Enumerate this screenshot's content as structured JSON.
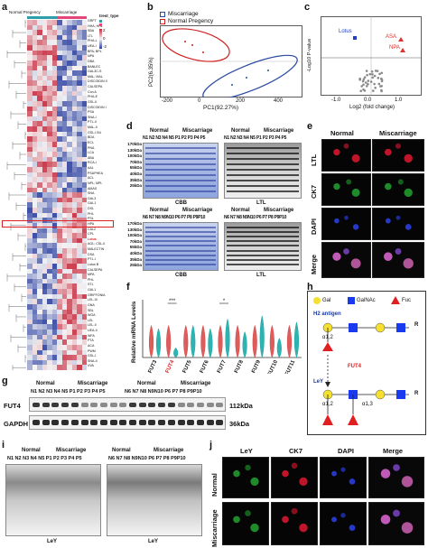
{
  "panels": {
    "a": "a",
    "b": "b",
    "c": "c",
    "d": "d",
    "e": "e",
    "f": "f",
    "g": "g",
    "h": "h",
    "i": "i",
    "j": "j"
  },
  "heatmap": {
    "group_labels": [
      "Normal Pregency",
      "Miscarriage"
    ],
    "legend_title": "trest_type",
    "legend_items": [
      "Normal Pregency",
      "Miscarriage"
    ],
    "scale_ticks": [
      "2",
      "1",
      "0",
      "-1",
      "-2"
    ],
    "row_labels": [
      "GRFT",
      "HHA; HHL",
      "SBA",
      "LTL",
      "PHA-L",
      "UEA-I",
      "BPA; BPL",
      "NPA",
      "DBA",
      "BANLEC",
      "GAL3C-S",
      "MAL; MAL",
      "DISCOIDIN II",
      "CALSEPA",
      "Con A",
      "PHA-E",
      "GSL-II",
      "DISCOIDIN I",
      "PSA",
      "SNA-I",
      "PTL-II",
      "MAL-II",
      "GSL-I B4",
      "BDA",
      "ECL",
      "PNA",
      "LCA",
      "ABA",
      "RCA-I",
      "AAL",
      "PSAPHEA",
      "ACL",
      "NPL; MPL",
      "AMAS",
      "SNA",
      "GAL3",
      "GAL1",
      "DSL",
      "PHL",
      "PSL",
      "HPA",
      "CAL2",
      "CPL",
      "Lotus",
      "AGL; CSL-II",
      "MALECTIN",
      "DSA",
      "PTL-I",
      "Lotus B",
      "CALSEPA",
      "MPA",
      "PHL",
      "STL",
      "GAL1",
      "GRIFFONIA",
      "LEL-III",
      "GNA",
      "SBL",
      "WGA",
      "LEL",
      "LEL-II",
      "UEA-II",
      "WFA",
      "PTA",
      "ACA",
      "PWM",
      "GSL-I",
      "SNA-II",
      "VVA"
    ],
    "highlight_label": "Lotus"
  },
  "pca": {
    "legend": [
      "Miscarriage",
      "Normal Pregency"
    ],
    "xlabel": "PC1(92.27%)",
    "ylabel": "PC2(6.35%)",
    "xticks": [
      "-200",
      "0",
      "200",
      "400"
    ]
  },
  "volcano": {
    "ylabel": "-Log10 P-value",
    "xlabel": "Log2 (fold change)",
    "xticks": [
      "-1.0",
      "0.0",
      "1.0"
    ],
    "point_labels": [
      "Lotus",
      "ASA",
      "NPA"
    ]
  },
  "blots_d": {
    "row1_groups": [
      "Normal",
      "Miscarriage",
      "Normal",
      "Miscarriage"
    ],
    "row1_lanes": "N1 N2 N3 N4 N5  P1 P2 P3 P4 P5",
    "row2_groups": [
      "Normal",
      "Miscarriage",
      "Normal",
      "Miscarriage"
    ],
    "row2_lanes": "N6 N7 N8 N9N10 P6 P7 P8 P9P10",
    "markers": [
      "170kDa",
      "130kDa",
      "100kDa",
      "70kDa",
      "55kDa",
      "40kDa",
      "35kDa",
      "25kDa"
    ],
    "captions": [
      "CBB",
      "LTL",
      "CBB",
      "LTL"
    ]
  },
  "micro_e": {
    "cols": [
      "Normal",
      "Miscarriage"
    ],
    "rows": [
      "LTL",
      "CK7",
      "DAPI",
      "Merge"
    ]
  },
  "chart_f": {
    "ylabel": "Relative mRNA Levels",
    "sig": [
      "***",
      "*"
    ]
  },
  "chart_data": {
    "type": "violin",
    "title": "",
    "ylabel": "Relative mRNA Levels",
    "categories": [
      "FUT3",
      "FUT4",
      "FUT5",
      "FUT6",
      "FUT7",
      "FUT8",
      "FUT9",
      "FUT10",
      "FUT11"
    ],
    "series": [
      {
        "name": "Normal",
        "color": "#d94a4a",
        "values": [
          1.0,
          1.0,
          1.0,
          1.0,
          1.0,
          1.0,
          1.0,
          1.0,
          1.0
        ]
      },
      {
        "name": "Miscarriage",
        "color": "#1aaaa8",
        "values": [
          0.9,
          0.3,
          1.0,
          0.9,
          1.2,
          0.8,
          1.3,
          0.6,
          1.1
        ]
      }
    ],
    "highlight_category": "FUT4",
    "significance": [
      {
        "category": "FUT4",
        "label": "***"
      },
      {
        "category": "FUT7",
        "label": "*"
      }
    ]
  },
  "diagram_h": {
    "legend": [
      "Gal",
      "GalNAc",
      "Fuc"
    ],
    "h2_label": "H2 antigen",
    "ley_label": "LeY",
    "enzyme": "FUT4",
    "linkages": [
      "α1,2",
      "α1,2",
      "α1,3"
    ],
    "terminal": "R"
  },
  "blot_g": {
    "groups": [
      "Normal",
      "Miscarriage",
      "Normal",
      "Miscarriage"
    ],
    "lanes_left": "N1 N2 N3 N4 N5 P1 P2 P3 P4 P5",
    "lanes_right": "N6 N7 N8 N9N10 P6 P7 P8 P9P10",
    "rows": [
      "FUT4",
      "GAPDH"
    ],
    "sizes": [
      "112kDa",
      "36kDa"
    ]
  },
  "blot_i": {
    "groups": [
      "Normal",
      "Miscarriage",
      "Normal",
      "Miscarriage"
    ],
    "lanes_left": "N1 N2 N3 N4 N5 P1 P2 P3 P4 P5",
    "lanes_right": "N6 N7 N8 N9N10 P6 P7 P8 P9P10",
    "caption_left": "LeY",
    "caption_right": "LeY"
  },
  "micro_j": {
    "cols": [
      "LeY",
      "CK7",
      "DAPI",
      "Merge"
    ],
    "rows": [
      "Normal",
      "Miscarriage"
    ]
  },
  "colors": {
    "red": "#d94a4a",
    "teal": "#1aaaa8",
    "blue_dot": "#2040c0",
    "fut4_red": "#e02020",
    "heat_red": "#c8283c",
    "heat_blue": "#2a3fa0"
  }
}
